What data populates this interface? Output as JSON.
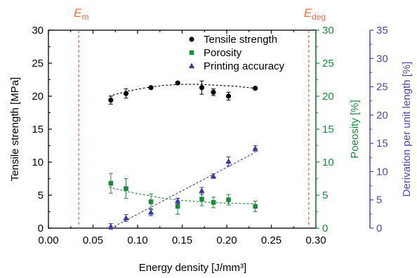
{
  "chart_data": {
    "type": "scatter",
    "xlabel": "Energy density [J/mm³]",
    "xlim": [
      0.0,
      0.3
    ],
    "xticks": [
      "0.00",
      "0.05",
      "0.10",
      "0.15",
      "0.20",
      "0.25",
      "0.30"
    ],
    "axes": {
      "left": {
        "label": "Tensile strength [MPa]",
        "ylim": [
          0,
          30
        ],
        "ticks": [
          "0",
          "5",
          "10",
          "15",
          "20",
          "25",
          "30"
        ],
        "color": "#000000"
      },
      "right1": {
        "label": "Poeosity [%]",
        "ylim": [
          0,
          30
        ],
        "ticks": [
          "0",
          "5",
          "10",
          "15",
          "20",
          "25",
          "30"
        ],
        "color": "#1b8a3c"
      },
      "right2": {
        "label": "Derivation per unit length [%]",
        "ylim": [
          0,
          35
        ],
        "ticks": [
          "0",
          "5",
          "10",
          "15",
          "20",
          "25",
          "30",
          "35"
        ],
        "color": "#4a4aa8"
      }
    },
    "vlines": [
      {
        "label_main": "E",
        "label_sub": "m",
        "x": 0.034,
        "color": "#f06a4a"
      },
      {
        "label_main": "E",
        "label_sub": "deg",
        "x": 0.292,
        "color": "#f06a4a"
      }
    ],
    "legend_position": "top-center",
    "series": [
      {
        "name": "Tensile strength",
        "axis": "left",
        "marker": "circle",
        "color": "#000000",
        "x": [
          0.07,
          0.087,
          0.115,
          0.145,
          0.172,
          0.185,
          0.202,
          0.232
        ],
        "y": [
          19.4,
          20.4,
          21.3,
          22.0,
          21.3,
          20.6,
          20.0,
          21.2
        ],
        "err": [
          0.6,
          0.7,
          0.0,
          0.0,
          1.0,
          0.5,
          0.6,
          0.0
        ],
        "fit": {
          "x": [
            0.068,
            0.09,
            0.11,
            0.13,
            0.15,
            0.17,
            0.19,
            0.21,
            0.232
          ],
          "y": [
            20.0,
            20.8,
            21.3,
            21.65,
            21.8,
            21.8,
            21.65,
            21.5,
            21.2
          ]
        }
      },
      {
        "name": "Porosity",
        "axis": "right1",
        "marker": "square",
        "color": "#1b8a3c",
        "x": [
          0.07,
          0.087,
          0.115,
          0.145,
          0.172,
          0.185,
          0.202,
          0.232
        ],
        "y": [
          6.8,
          6.0,
          4.0,
          3.3,
          4.4,
          3.9,
          4.3,
          3.3
        ],
        "err": [
          1.5,
          1.5,
          1.2,
          1.2,
          1.0,
          0.8,
          0.8,
          0.8
        ],
        "fit": {
          "x": [
            0.068,
            0.09,
            0.11,
            0.13,
            0.15,
            0.17,
            0.19,
            0.21,
            0.232
          ],
          "y": [
            6.2,
            5.5,
            5.0,
            4.5,
            4.2,
            4.0,
            3.85,
            3.75,
            3.7
          ]
        }
      },
      {
        "name": "Printing accuracy",
        "axis": "right2",
        "marker": "triangle",
        "color": "#3a3aa0",
        "x": [
          0.07,
          0.087,
          0.115,
          0.145,
          0.172,
          0.185,
          0.202,
          0.232
        ],
        "y": [
          0.3,
          1.8,
          2.8,
          4.8,
          6.6,
          9.2,
          11.8,
          14.1
        ],
        "err": [
          0.5,
          0.6,
          0.6,
          0.5,
          0.6,
          0.4,
          0.8,
          0.5
        ],
        "fit": {
          "x": [
            0.07,
            0.232
          ],
          "y": [
            0.0,
            13.4
          ]
        }
      }
    ]
  }
}
